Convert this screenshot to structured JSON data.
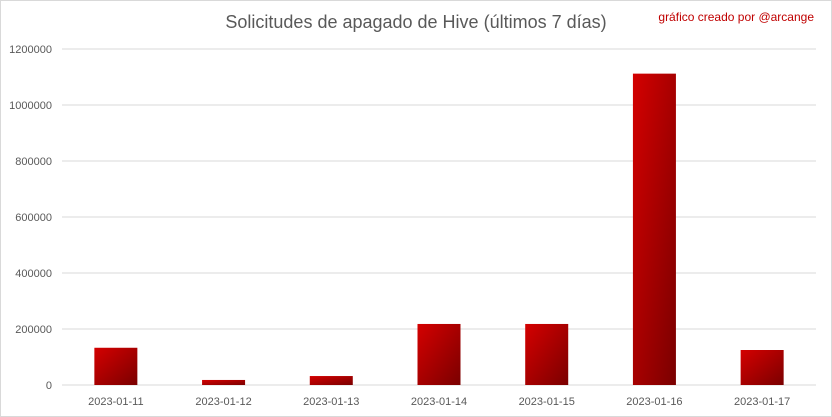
{
  "chart_data": {
    "type": "bar",
    "title": "Solicitudes de apagado de Hive (últimos 7 días)",
    "annotation": "gráfico creado por @arcange",
    "categories": [
      "2023-01-11",
      "2023-01-12",
      "2023-01-13",
      "2023-01-14",
      "2023-01-15",
      "2023-01-16",
      "2023-01-17"
    ],
    "values": [
      133000,
      18000,
      32000,
      218000,
      218000,
      1112000,
      125000
    ],
    "ylim": [
      0,
      1200000
    ],
    "yticks": [
      0,
      200000,
      400000,
      600000,
      800000,
      1000000,
      1200000
    ],
    "ytick_labels": [
      "0",
      "200000",
      "400000",
      "600000",
      "800000",
      "1000000",
      "1200000"
    ],
    "grid": true,
    "legend": "none",
    "colors": {
      "bar_light": "#d40000",
      "bar_dark": "#7a0000",
      "grid": "#d9d9d9",
      "text": "#595959"
    }
  }
}
